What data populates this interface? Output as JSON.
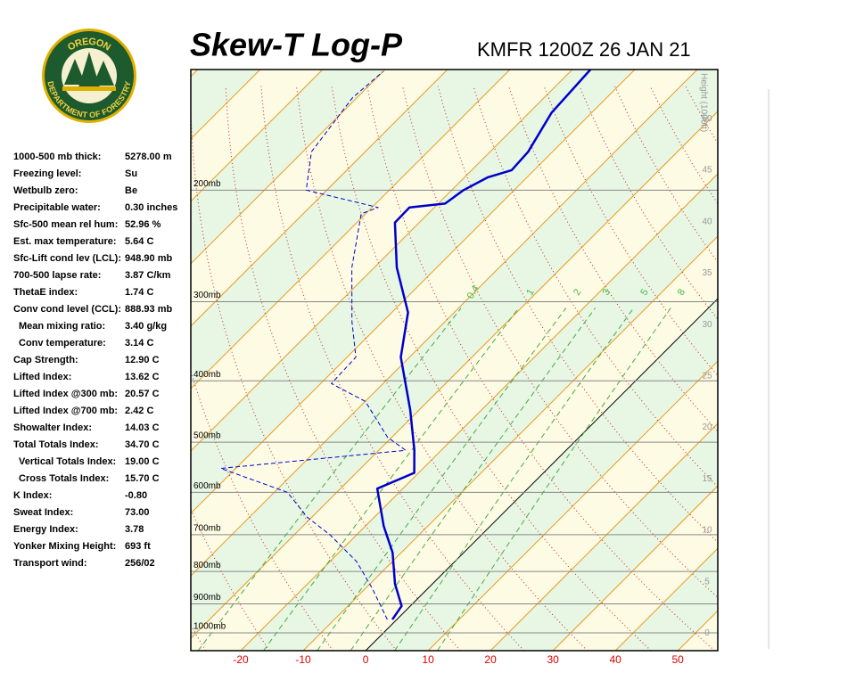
{
  "logo": {
    "top": "OREGON",
    "bottom": "DEPARTMENT OF FORESTRY"
  },
  "indices": [
    [
      "1000-500 mb thick:",
      "5278.00 m"
    ],
    [
      "Freezing level:",
      "Su"
    ],
    [
      "Wetbulb zero:",
      "Be"
    ],
    [
      "Precipitable water:",
      "0.30 inches"
    ],
    [
      "Sfc-500 mean rel hum:",
      "52.96 %"
    ],
    [
      "Est. max temperature:",
      "5.64 C"
    ],
    [
      "Sfc-Lift cond lev (LCL):",
      "948.90 mb"
    ],
    [
      "700-500 lapse rate:",
      "3.87 C/km"
    ],
    [
      "ThetaE index:",
      "1.74 C"
    ],
    [
      "Conv cond level (CCL):",
      "888.93 mb"
    ],
    [
      "Mean mixing ratio:",
      "3.40 g/kg"
    ],
    [
      "Conv temperature:",
      "3.14 C"
    ],
    [
      "Cap Strength:",
      "12.90 C"
    ],
    [
      "Lifted Index:",
      "13.62 C"
    ],
    [
      "Lifted Index @300 mb:",
      "20.57 C"
    ],
    [
      "Lifted Index @700 mb:",
      "2.42 C"
    ],
    [
      "Showalter Index:",
      "14.03 C"
    ],
    [
      "Total Totals Index:",
      "34.70 C"
    ],
    [
      "Vertical Totals Index:",
      "19.00 C"
    ],
    [
      "Cross Totals Index:",
      "15.70 C"
    ],
    [
      "K Index:",
      "-0.80"
    ],
    [
      "Sweat Index:",
      "73.00"
    ],
    [
      "Energy Index:",
      "3.78"
    ],
    [
      "Yonker Mixing Height:",
      "693 ft"
    ],
    [
      "Transport wind:",
      "256/02"
    ]
  ],
  "chart_data": {
    "type": "skewt",
    "title": "Skew-T Log-P",
    "subtitle": "KMFR 1200Z 26 JAN 21",
    "xlim": [
      -28,
      56.4
    ],
    "xticks": [
      -20,
      -10,
      0,
      10,
      20,
      30,
      40,
      50
    ],
    "ylim": [
      1067,
      129
    ],
    "log_y": true,
    "yticks": [
      {
        "value": 1000,
        "label": "1000mb"
      },
      {
        "value": 900,
        "label": "900mb"
      },
      {
        "value": 800,
        "label": "800mb"
      },
      {
        "value": 700,
        "label": "700mb"
      },
      {
        "value": 600,
        "label": "600mb"
      },
      {
        "value": 500,
        "label": "500mb"
      },
      {
        "value": 400,
        "label": "400mb"
      },
      {
        "value": 300,
        "label": "300mb"
      },
      {
        "value": 200,
        "label": "200mb"
      }
    ],
    "y2label": "Height (1000ft)",
    "y2lim": [
      -1.7,
      54.8
    ],
    "y2ticks": [
      0,
      5,
      10,
      15,
      20,
      25,
      30,
      35,
      40,
      45,
      50
    ],
    "mixing_ratios": [
      0.4,
      1,
      2,
      3,
      5,
      8
    ],
    "series": [
      {
        "color": "#0000cc",
        "style": "solid",
        "pressure": [
          953,
          907,
          837,
          747,
          678,
          592,
          559,
          515,
          445,
          367,
          312,
          265,
          225,
          213,
          210,
          200,
          191,
          186,
          174,
          151,
          129
        ],
        "values": [
          -0.7,
          -1.4,
          -6,
          -11.4,
          -17.1,
          -24.1,
          -20.7,
          -24.3,
          -31.4,
          -41.4,
          -47.4,
          -56.4,
          -63.9,
          -64,
          -58.9,
          -58.1,
          -56.3,
          -53.6,
          -53.9,
          -56.4,
          -57.1
        ]
      },
      {
        "color": "#0000cc",
        "style": "dashed",
        "pressure": [
          953,
          851,
          772,
          700,
          657,
          600,
          550,
          515,
          491,
          431,
          404,
          367,
          322,
          265,
          218,
          213,
          200,
          174,
          143,
          130
        ],
        "values": [
          -1.5,
          -8.9,
          -15.7,
          -24.3,
          -30.7,
          -37.9,
          -52.4,
          -25.7,
          -30.7,
          -40,
          -48.3,
          -48.6,
          -55,
          -63.6,
          -70.7,
          -69,
          -83.3,
          -88.6,
          -90.7,
          -90
        ]
      }
    ]
  }
}
